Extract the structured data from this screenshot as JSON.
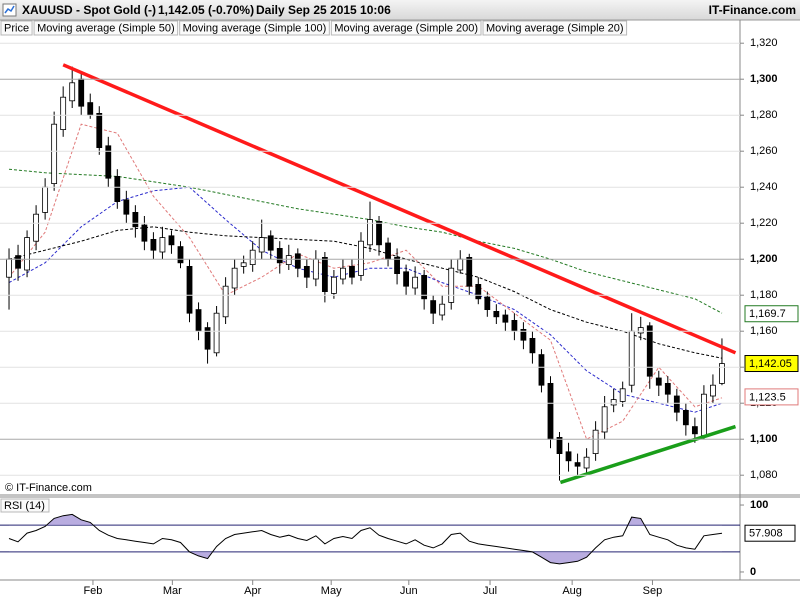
{
  "header": {
    "symbol": "XAUUSD - Spot Gold (-)",
    "quote": "1,142.05 (-0.70%)",
    "period": "Daily",
    "datetime": "Sep 25 2015 10:06",
    "brand": "IT-Finance.com"
  },
  "chart_data": [
    {
      "type": "candlestick",
      "watermark": "© IT-Finance.com",
      "price": {
        "name": "Price",
        "up_color": "#ffffff",
        "down_color": "#000000",
        "open": [
          1190,
          1202,
          1194,
          1210,
          1226,
          1242,
          1272,
          1288,
          1300,
          1287,
          1281,
          1263,
          1246,
          1233,
          1226,
          1219,
          1211,
          1204,
          1213,
          1207,
          1196,
          1172,
          1162,
          1148,
          1168,
          1184,
          1196,
          1197,
          1204,
          1213,
          1206,
          1197,
          1203,
          1196,
          1189,
          1201,
          1181,
          1189,
          1196,
          1191,
          1208,
          1221,
          1209,
          1201,
          1193,
          1184,
          1191,
          1177,
          1169,
          1176,
          1194,
          1201,
          1186,
          1179,
          1171,
          1169,
          1166,
          1161,
          1156,
          1147,
          1131,
          1101,
          1093,
          1087,
          1084,
          1092,
          1104,
          1119,
          1121,
          1130,
          1159,
          1163,
          1134,
          1131,
          1124,
          1116,
          1107,
          1102,
          1124,
          1131
        ],
        "high": [
          1206,
          1208,
          1216,
          1230,
          1245,
          1282,
          1296,
          1307,
          1304,
          1292,
          1285,
          1268,
          1250,
          1238,
          1230,
          1224,
          1215,
          1218,
          1216,
          1210,
          1200,
          1176,
          1165,
          1174,
          1190,
          1200,
          1202,
          1210,
          1222,
          1216,
          1210,
          1208,
          1206,
          1200,
          1205,
          1204,
          1194,
          1200,
          1200,
          1215,
          1232,
          1224,
          1212,
          1206,
          1197,
          1196,
          1194,
          1180,
          1180,
          1200,
          1205,
          1203,
          1190,
          1182,
          1175,
          1172,
          1170,
          1165,
          1160,
          1150,
          1135,
          1104,
          1098,
          1092,
          1095,
          1110,
          1124,
          1128,
          1132,
          1170,
          1168,
          1165,
          1138,
          1135,
          1128,
          1120,
          1112,
          1130,
          1136,
          1156
        ],
        "low": [
          1172,
          1188,
          1190,
          1205,
          1222,
          1238,
          1268,
          1284,
          1280,
          1278,
          1258,
          1240,
          1228,
          1220,
          1212,
          1205,
          1200,
          1200,
          1203,
          1195,
          1165,
          1155,
          1142,
          1146,
          1164,
          1180,
          1192,
          1193,
          1200,
          1200,
          1192,
          1194,
          1190,
          1184,
          1185,
          1176,
          1178,
          1186,
          1186,
          1188,
          1204,
          1202,
          1196,
          1186,
          1180,
          1180,
          1172,
          1164,
          1166,
          1172,
          1192,
          1180,
          1175,
          1168,
          1164,
          1160,
          1155,
          1150,
          1142,
          1126,
          1095,
          1077,
          1082,
          1080,
          1080,
          1088,
          1100,
          1115,
          1118,
          1126,
          1155,
          1128,
          1124,
          1120,
          1110,
          1102,
          1098,
          1100,
          1120,
          1130
        ],
        "close": [
          1200,
          1195,
          1212,
          1225,
          1240,
          1275,
          1290,
          1298,
          1285,
          1280,
          1262,
          1245,
          1232,
          1225,
          1218,
          1210,
          1205,
          1212,
          1208,
          1198,
          1170,
          1160,
          1150,
          1170,
          1185,
          1195,
          1198,
          1205,
          1212,
          1205,
          1198,
          1202,
          1195,
          1190,
          1200,
          1182,
          1190,
          1195,
          1190,
          1210,
          1222,
          1208,
          1200,
          1192,
          1185,
          1190,
          1178,
          1170,
          1175,
          1195,
          1200,
          1185,
          1178,
          1172,
          1168,
          1165,
          1160,
          1155,
          1148,
          1130,
          1100,
          1092,
          1088,
          1085,
          1090,
          1105,
          1118,
          1122,
          1128,
          1160,
          1162,
          1135,
          1130,
          1125,
          1115,
          1108,
          1103,
          1125,
          1130,
          1142
        ]
      },
      "ma_x": [
        0,
        4,
        8,
        12,
        16,
        20,
        24,
        28,
        32,
        36,
        40,
        44,
        48,
        52,
        56,
        60,
        64,
        68,
        72,
        76,
        79
      ],
      "series": [
        {
          "name": "Moving average (Simple 50)",
          "color": "#2b2bcc",
          "values": [
            1187,
            1198,
            1218,
            1232,
            1238,
            1240,
            1222,
            1205,
            1195,
            1190,
            1195,
            1195,
            1187,
            1180,
            1172,
            1158,
            1138,
            1125,
            1120,
            1115,
            1120
          ]
        },
        {
          "name": "Moving average (Simple 100)",
          "color": "#000000",
          "values": [
            1200,
            1205,
            1210,
            1216,
            1218,
            1215,
            1213,
            1212,
            1211,
            1210,
            1206,
            1200,
            1195,
            1190,
            1182,
            1172,
            1165,
            1160,
            1153,
            1148,
            1145
          ]
        },
        {
          "name": "Moving average (Simple 200)",
          "color": "#237a23",
          "values": [
            1250,
            1248,
            1247,
            1246,
            1243,
            1240,
            1236,
            1232,
            1228,
            1225,
            1222,
            1218,
            1215,
            1210,
            1206,
            1200,
            1193,
            1188,
            1183,
            1178,
            1170
          ]
        },
        {
          "name": "Moving average (Simple 20)",
          "color": "#e07a7a",
          "values": [
            1190,
            1215,
            1275,
            1270,
            1235,
            1212,
            1180,
            1190,
            1203,
            1195,
            1198,
            1205,
            1185,
            1185,
            1170,
            1155,
            1100,
            1110,
            1140,
            1118,
            1123
          ]
        }
      ],
      "xlim": [
        -1,
        81
      ],
      "xticks": [
        {
          "value": 9.3,
          "label": "Feb"
        },
        {
          "value": 18.1,
          "label": "Mar"
        },
        {
          "value": 27,
          "label": "Apr"
        },
        {
          "value": 35.7,
          "label": "May"
        },
        {
          "value": 44.3,
          "label": "Jun"
        },
        {
          "value": 53.3,
          "label": "Jul"
        },
        {
          "value": 62.4,
          "label": "Aug"
        },
        {
          "value": 71.3,
          "label": "Sep"
        }
      ],
      "ylim": [
        1069,
        1324
      ],
      "yticks": [
        {
          "value": 1080,
          "label": "1,080"
        },
        {
          "value": 1100,
          "label": "1,100"
        },
        {
          "value": 1120,
          "label": "1,120"
        },
        {
          "value": 1140,
          "label": "1,140"
        },
        {
          "value": 1160,
          "label": "1,160"
        },
        {
          "value": 1180,
          "label": "1,180"
        },
        {
          "value": 1200,
          "label": "1,200"
        },
        {
          "value": 1220,
          "label": "1,220"
        },
        {
          "value": 1240,
          "label": "1,240"
        },
        {
          "value": 1260,
          "label": "1,260"
        },
        {
          "value": 1280,
          "label": "1,280"
        },
        {
          "value": 1300,
          "label": "1,300"
        },
        {
          "value": 1320,
          "label": "1,320"
        }
      ],
      "grid": true,
      "price_labels": [
        {
          "value": 1169.7,
          "label": "1,169.7",
          "color": "#237a23",
          "background": "#ffffff"
        },
        {
          "value": 1123.5,
          "label": "1,123.5",
          "color": "#e07a7a",
          "background": "#ffffff"
        },
        {
          "value": 1142.05,
          "label": "1,142.05",
          "color": "#000000",
          "background": "#ffff00"
        }
      ],
      "trendlines": [
        {
          "color": "#ff1a1a",
          "x": [
            6,
            80.5
          ],
          "y": [
            1308,
            1148
          ]
        },
        {
          "color": "#1a9e1a",
          "x": [
            61.1,
            80.5
          ],
          "y": [
            1076,
            1107
          ]
        }
      ]
    },
    {
      "type": "line",
      "title": "RSI (14)",
      "color": "#000000",
      "fill_color": "#a898d8",
      "values": [
        50,
        45,
        58,
        62,
        68,
        80,
        84,
        86,
        78,
        74,
        62,
        55,
        50,
        48,
        46,
        44,
        42,
        50,
        48,
        44,
        30,
        24,
        20,
        38,
        50,
        56,
        58,
        60,
        62,
        56,
        52,
        55,
        50,
        47,
        54,
        42,
        50,
        53,
        50,
        62,
        66,
        55,
        50,
        46,
        42,
        48,
        40,
        36,
        42,
        56,
        58,
        46,
        42,
        40,
        38,
        36,
        34,
        32,
        30,
        22,
        14,
        12,
        14,
        16,
        22,
        36,
        48,
        52,
        54,
        82,
        80,
        56,
        52,
        48,
        40,
        36,
        34,
        54,
        56,
        57.908
      ],
      "xlim": [
        -1,
        81
      ],
      "ylim": [
        -12,
        112
      ],
      "yticks": [
        0,
        100
      ],
      "levels": [
        30,
        70
      ]
    }
  ]
}
